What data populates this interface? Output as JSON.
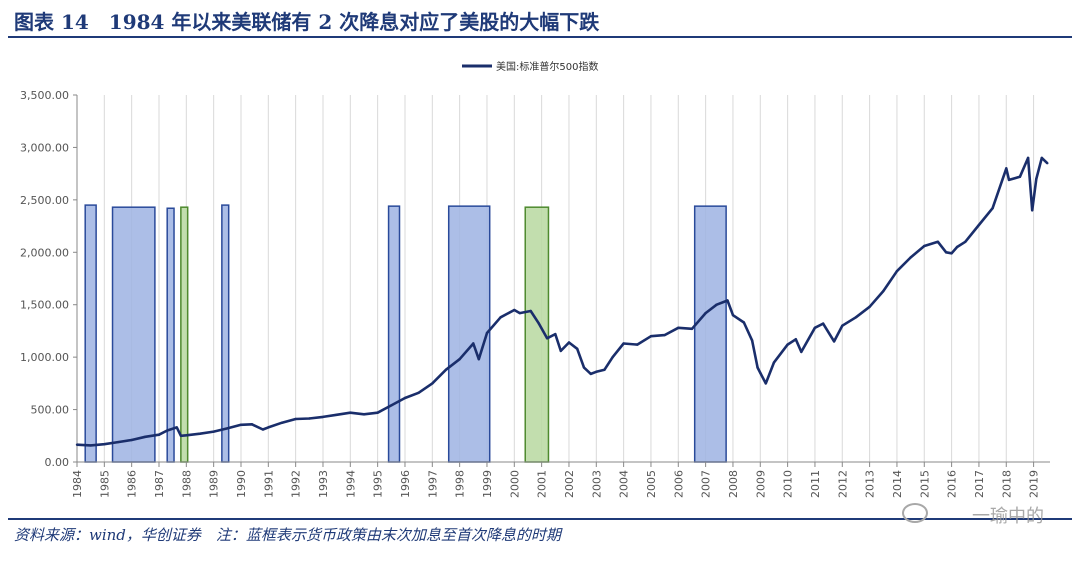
{
  "header": {
    "title": "图表 14　1984 年以来美联储有 2 次降息对应了美股的大幅下跌"
  },
  "footer": {
    "source": "资料来源：wind，华创证券　注：蓝框表示货币政策由末次加息至首次降息的时期",
    "watermark": "一瑜中的"
  },
  "colors": {
    "line": "#1a2e6b",
    "blue_box_fill": "#9db3e3",
    "blue_box_stroke": "#2a4a9a",
    "green_box_fill": "#b7d8a0",
    "green_box_stroke": "#4e8a2e",
    "title": "#1f3a78"
  },
  "chart_data": {
    "type": "line",
    "title": "",
    "xlabel": "",
    "ylabel": "",
    "legend": {
      "placement": "top-center",
      "entries": [
        "美国:标准普尔500指数"
      ]
    },
    "grid": {
      "vertical": true,
      "horizontal": false
    },
    "xlim": [
      1984.0,
      2019.6
    ],
    "ylim": [
      0,
      3500
    ],
    "y_ticks": [
      "0.00",
      "500.00",
      "1,000.00",
      "1,500.00",
      "2,000.00",
      "2,500.00",
      "3,000.00",
      "3,500.00"
    ],
    "x_ticks": [
      "1984",
      "1985",
      "1986",
      "1987",
      "1988",
      "1989",
      "1990",
      "1991",
      "1992",
      "1993",
      "1994",
      "1995",
      "1996",
      "1997",
      "1998",
      "1999",
      "2000",
      "2001",
      "2002",
      "2003",
      "2004",
      "2005",
      "2006",
      "2007",
      "2008",
      "2009",
      "2010",
      "2011",
      "2012",
      "2013",
      "2014",
      "2015",
      "2016",
      "2017",
      "2018",
      "2019"
    ],
    "series": [
      {
        "name": "美国:标准普尔500指数",
        "x": [
          1984.0,
          1984.5,
          1985.0,
          1985.5,
          1986.0,
          1986.5,
          1987.0,
          1987.3,
          1987.65,
          1987.8,
          1988.0,
          1988.5,
          1989.0,
          1989.5,
          1990.0,
          1990.4,
          1990.8,
          1991.0,
          1991.5,
          1992.0,
          1992.5,
          1993.0,
          1993.5,
          1994.0,
          1994.5,
          1995.0,
          1995.5,
          1996.0,
          1996.5,
          1997.0,
          1997.5,
          1998.0,
          1998.5,
          1998.7,
          1999.0,
          1999.5,
          2000.0,
          2000.2,
          2000.6,
          2000.9,
          2001.2,
          2001.5,
          2001.7,
          2002.0,
          2002.3,
          2002.55,
          2002.8,
          2003.0,
          2003.3,
          2003.6,
          2004.0,
          2004.5,
          2005.0,
          2005.5,
          2006.0,
          2006.5,
          2007.0,
          2007.4,
          2007.8,
          2008.0,
          2008.4,
          2008.7,
          2008.9,
          2009.0,
          2009.2,
          2009.5,
          2010.0,
          2010.3,
          2010.5,
          2011.0,
          2011.3,
          2011.7,
          2012.0,
          2012.5,
          2013.0,
          2013.5,
          2014.0,
          2014.5,
          2015.0,
          2015.5,
          2015.8,
          2016.0,
          2016.2,
          2016.5,
          2017.0,
          2017.5,
          2018.0,
          2018.1,
          2018.5,
          2018.8,
          2018.95,
          2019.1,
          2019.3,
          2019.5
        ],
        "values": [
          165,
          158,
          170,
          190,
          210,
          240,
          260,
          300,
          330,
          250,
          255,
          270,
          290,
          320,
          355,
          360,
          310,
          330,
          375,
          410,
          415,
          430,
          450,
          470,
          455,
          470,
          540,
          610,
          660,
          750,
          880,
          980,
          1130,
          980,
          1230,
          1380,
          1450,
          1420,
          1440,
          1320,
          1180,
          1220,
          1060,
          1140,
          1080,
          900,
          840,
          860,
          880,
          1000,
          1130,
          1120,
          1200,
          1210,
          1280,
          1270,
          1420,
          1500,
          1540,
          1400,
          1330,
          1160,
          900,
          850,
          750,
          950,
          1120,
          1170,
          1050,
          1280,
          1320,
          1150,
          1300,
          1380,
          1480,
          1630,
          1820,
          1950,
          2060,
          2100,
          2000,
          1990,
          2050,
          2100,
          2260,
          2420,
          2800,
          2690,
          2720,
          2900,
          2400,
          2700,
          2900,
          2850
        ]
      }
    ],
    "shaded_periods": [
      {
        "color": "blue",
        "x_start": 1984.3,
        "x_end": 1984.7,
        "top": 2450
      },
      {
        "color": "blue",
        "x_start": 1985.3,
        "x_end": 1986.85,
        "top": 2430
      },
      {
        "color": "blue",
        "x_start": 1987.3,
        "x_end": 1987.55,
        "top": 2420
      },
      {
        "color": "green",
        "x_start": 1987.8,
        "x_end": 1988.05,
        "top": 2430
      },
      {
        "color": "blue",
        "x_start": 1989.3,
        "x_end": 1989.55,
        "top": 2450
      },
      {
        "color": "blue",
        "x_start": 1995.4,
        "x_end": 1995.8,
        "top": 2440
      },
      {
        "color": "blue",
        "x_start": 1997.6,
        "x_end": 1999.1,
        "top": 2440
      },
      {
        "color": "green",
        "x_start": 2000.4,
        "x_end": 2001.25,
        "top": 2430
      },
      {
        "color": "blue",
        "x_start": 2006.6,
        "x_end": 2007.75,
        "top": 2440
      }
    ]
  }
}
